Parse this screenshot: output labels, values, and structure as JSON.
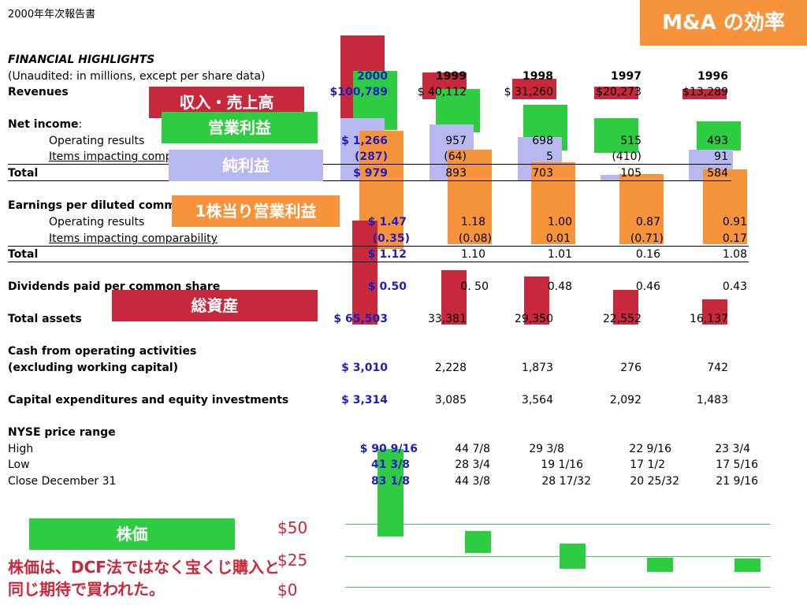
{
  "header_label": "2000年年次報告書",
  "title_badge": "M&A の効率",
  "colors": {
    "red": "#c8283c",
    "green": "#2ecc40",
    "orange": "#f7943b",
    "lavender": "#b8b8f0",
    "badge": "#f7943b",
    "blue_text": "#1f1fbf"
  },
  "section_title": "FINANCIAL HIGHLIGHTS",
  "subtitle": "(Unaudited: in millions, except per share data)",
  "years": [
    "2000",
    "1999",
    "1998",
    "1997",
    "1996"
  ],
  "rows": {
    "revenues": {
      "label": "Revenues",
      "values": [
        "$100,789",
        "$ 40,112",
        "$ 31,260",
        "$20,273",
        "$13,289"
      ]
    },
    "net_income": {
      "label": "Net income",
      "suffix": ":"
    },
    "operating_results": {
      "label": "Operating results",
      "values": [
        "$ 1,266",
        "957",
        "698",
        "515",
        "493"
      ]
    },
    "items_impacting": {
      "label": "Items impacting comparability",
      "values": [
        "(287)",
        "(64)",
        "5",
        "(410)",
        "91"
      ]
    },
    "total": {
      "label": "Total",
      "values": [
        "$ 979",
        "893",
        "703",
        "105",
        "584"
      ]
    },
    "eps": {
      "label": "Earnings per diluted common share"
    },
    "eps_operating": {
      "label": "Operating results",
      "values": [
        "$ 1.47",
        "1.18",
        "1.00",
        "0.87",
        "0.91"
      ]
    },
    "eps_items": {
      "label": "Items impacting comparability",
      "values": [
        "(0.35)",
        "(0.08)",
        "0.01",
        "(0.71)",
        "0.17"
      ]
    },
    "eps_total": {
      "label": "Total",
      "values": [
        "$ 1.12",
        "1.10",
        "1.01",
        "0.16",
        "1.08"
      ]
    },
    "dividends": {
      "label": "Dividends paid per common share",
      "values": [
        "$ 0.50",
        "0. 50",
        "0.48",
        "0.46",
        "0.43"
      ]
    },
    "total_assets": {
      "label": "Total assets",
      "values": [
        "$ 65,503",
        "33,381",
        "29,350",
        "22,552",
        "16,137"
      ]
    },
    "cash_from_ops": {
      "label": "Cash from operating activities"
    },
    "cash_excl": {
      "label": "(excluding working capital)",
      "values": [
        "$ 3,010",
        "2,228",
        "1,873",
        "276",
        "742"
      ]
    },
    "capex": {
      "label": "Capital expenditures and equity investments",
      "values": [
        "$ 3,314",
        "3,085",
        "3,564",
        "2,092",
        "1,483"
      ]
    },
    "nyse": {
      "label": "NYSE price range"
    },
    "high": {
      "label": "High",
      "values": [
        "$ 90 9/16",
        "44 7/8",
        "29 3/8",
        "22 9/16",
        "23 3/4"
      ]
    },
    "low": {
      "label": "Low",
      "values": [
        "41 3/8",
        "28 3/4",
        "19 1/16",
        "17 1/2",
        "17 5/16"
      ]
    },
    "close": {
      "label": "Close December 31",
      "values": [
        "83 1/8",
        "44 3/8",
        "28 17/32",
        "20 25/32",
        "21 9/16"
      ]
    }
  },
  "overlay_labels": {
    "revenue": "収入・売上高",
    "operating_profit": "営業利益",
    "net_profit": "純利益",
    "eps_operating": "1株当り営業利益",
    "total_assets": "総資産",
    "stock_price": "株価"
  },
  "price_axis": [
    "$50",
    "$25",
    "$0"
  ],
  "note": "株価は、DCF法ではなく宝くじ購入と同じ期待で買われた。"
}
